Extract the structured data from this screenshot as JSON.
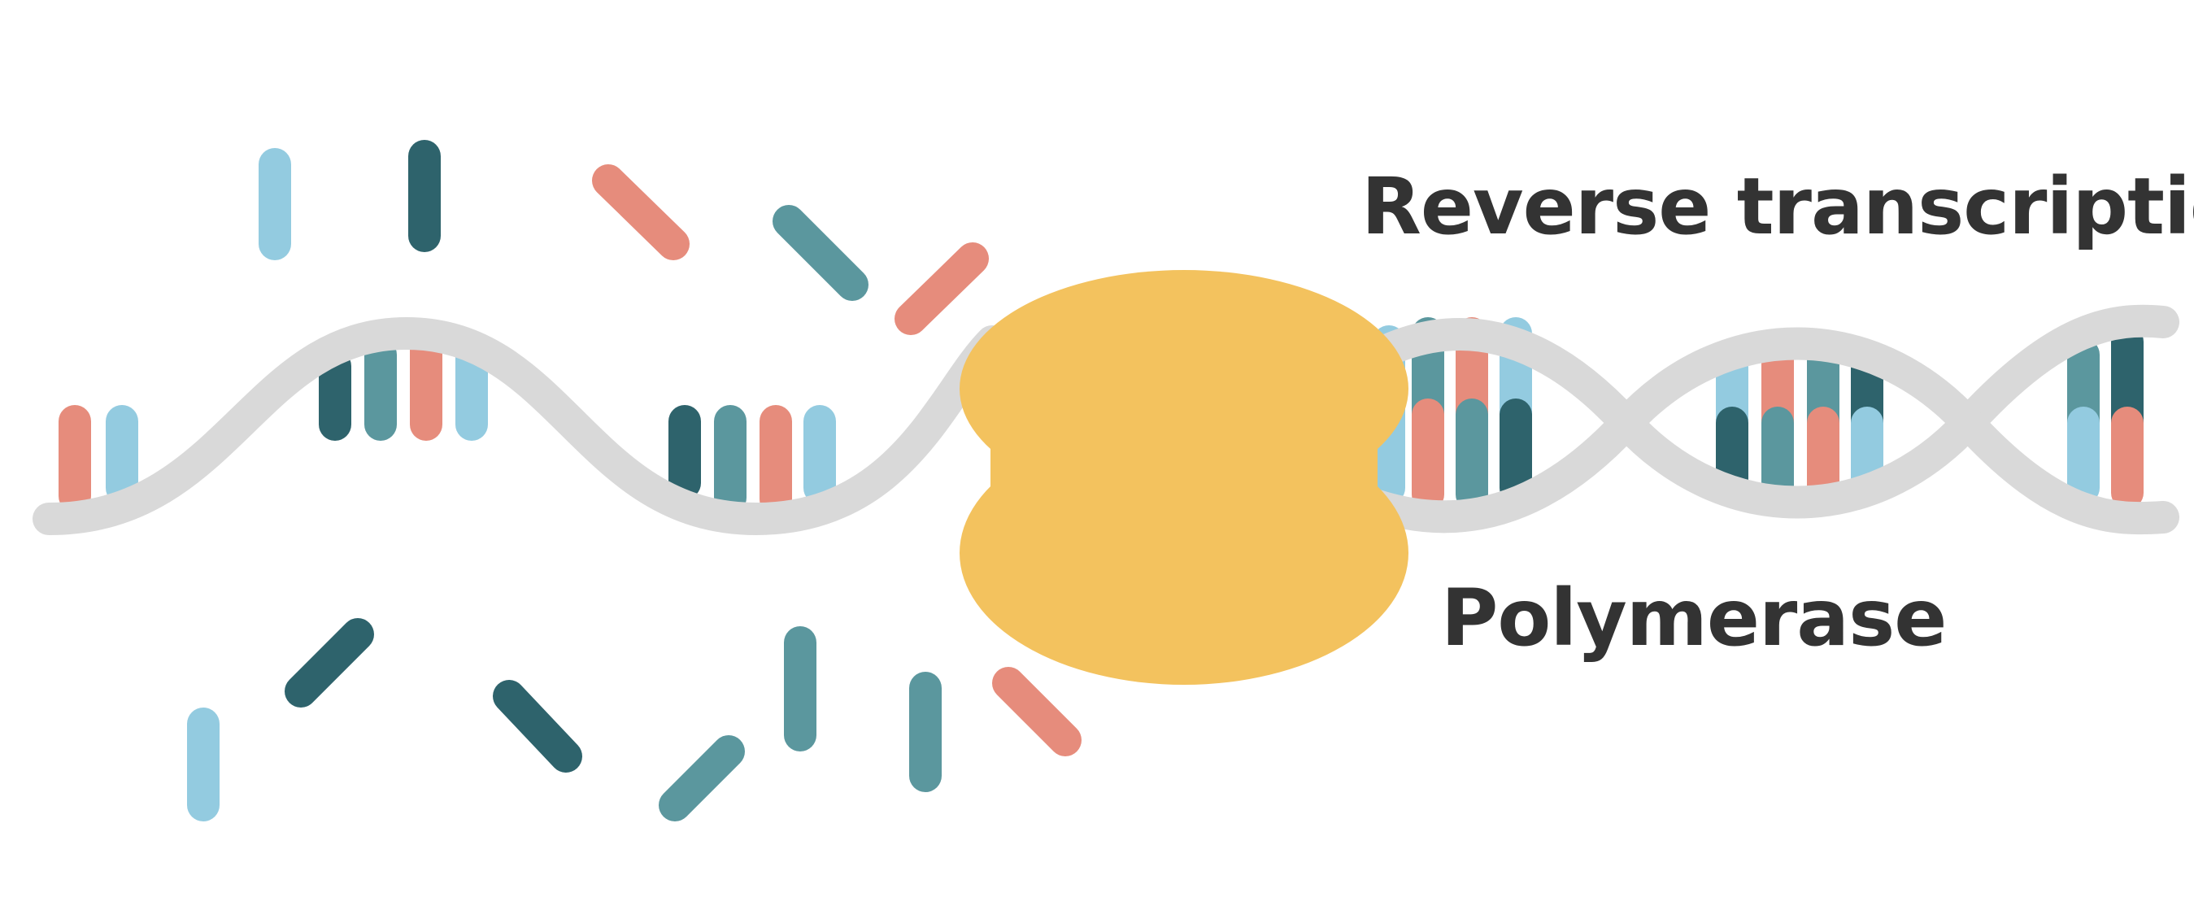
{
  "labels": {
    "process": "Reverse transcription",
    "enzyme": "Polymerase"
  },
  "colors": {
    "background": "#ffffff",
    "backbone": "#d9d9d9",
    "enzyme": "#f3c25e",
    "text": "#333333",
    "nucleotide_light_blue": "#93cbe0",
    "nucleotide_dark_teal": "#2e636c",
    "nucleotide_teal": "#5b979e",
    "nucleotide_salmon": "#e68c7c"
  },
  "icons": {
    "enzyme": "polymerase-blob",
    "strand": "nucleic-acid-backbone",
    "nucleotide": "nucleotide-bar"
  }
}
